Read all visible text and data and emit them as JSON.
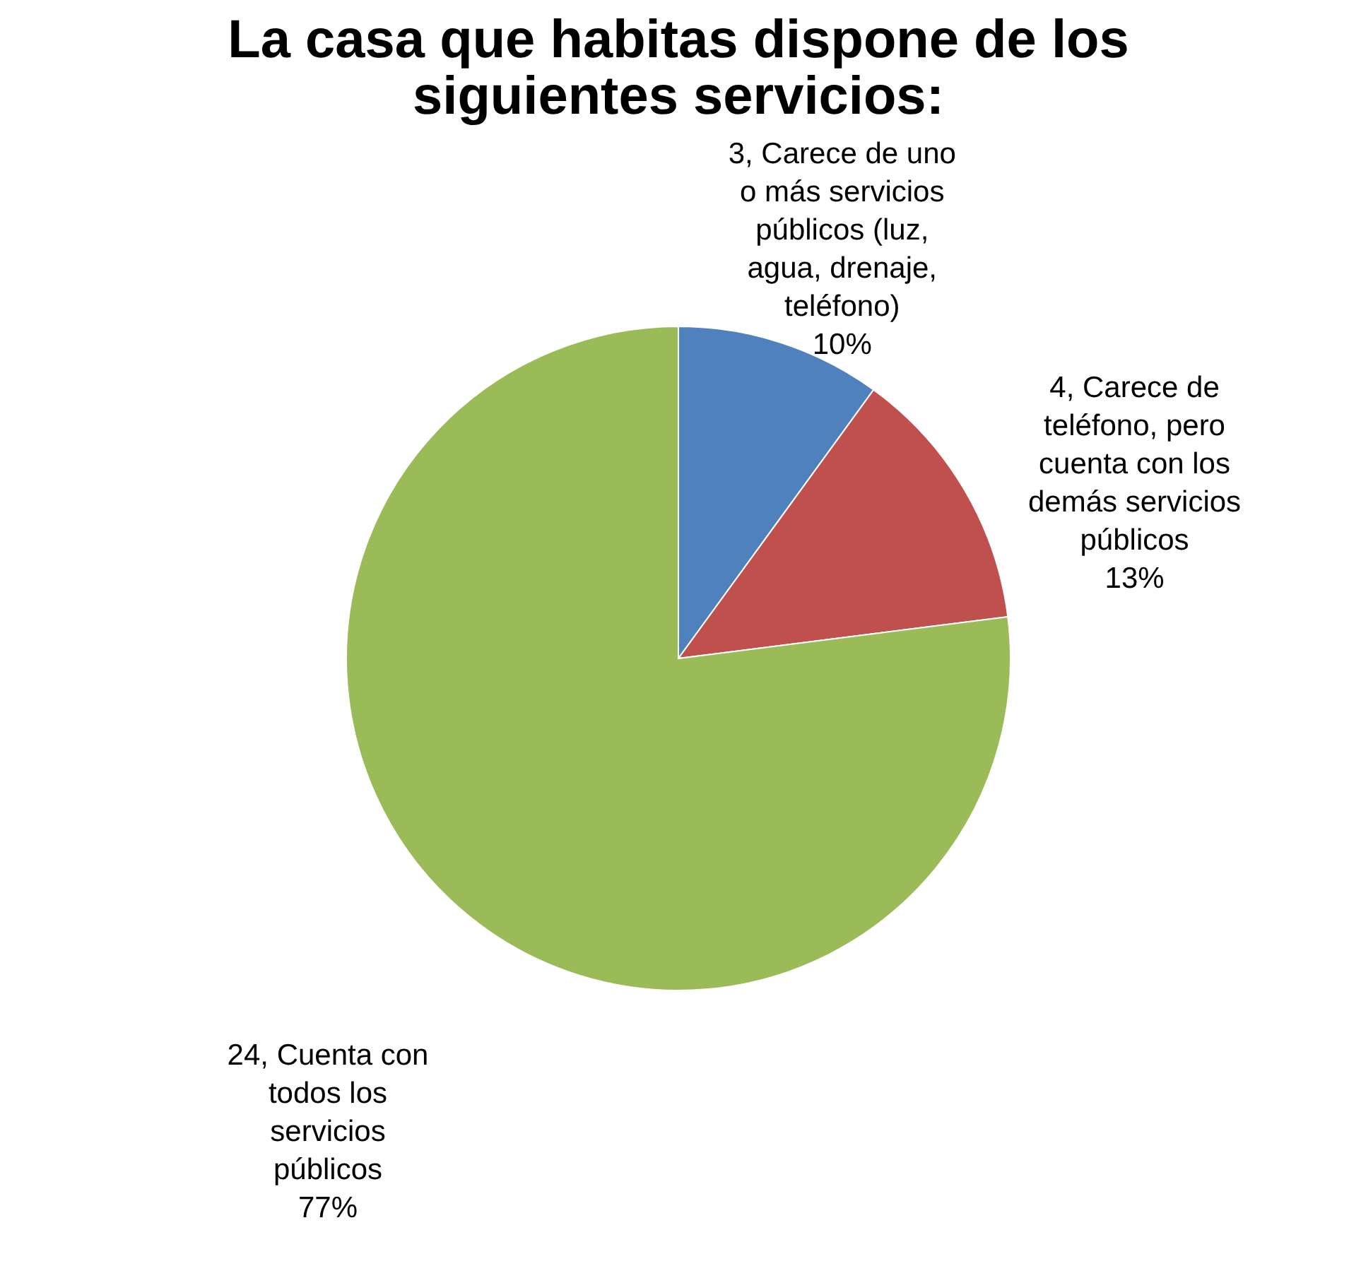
{
  "chart_data": {
    "type": "pie",
    "title": "La casa que habitas dispone de los siguientes servicios:",
    "categories": [
      "3,  Carece de uno o más servicios públicos (luz, agua, drenaje, teléfono)",
      "4,  Carece de teléfono, pero cuenta con los demás servicios públicos",
      "24,  Cuenta con todos los servicios públicos"
    ],
    "values": [
      10,
      13,
      77
    ],
    "colors": [
      "#4f81bd",
      "#c0504d",
      "#9bbb59"
    ],
    "value_labels": [
      "10%",
      "13%",
      "77%"
    ]
  }
}
